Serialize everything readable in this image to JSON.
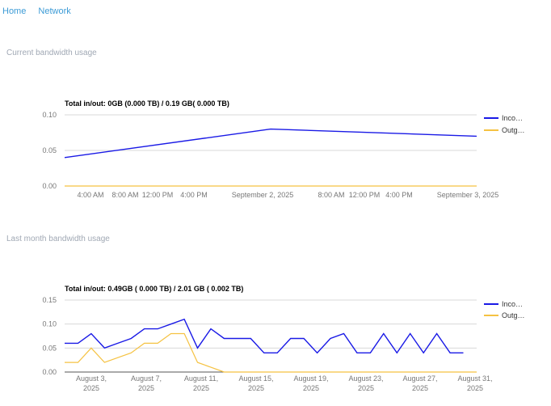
{
  "nav": {
    "home": "Home",
    "network": "Network"
  },
  "sections": {
    "current": "Current bandwidth usage",
    "last_month": "Last month bandwidth usage"
  },
  "colors": {
    "incoming": "#1a1ae6",
    "outgoing": "#f5c242",
    "grid": "#d8d8d8",
    "zero_line": "#555555"
  },
  "chart_data": [
    {
      "type": "line",
      "title": "Total in/out: 0GB (0.000 TB) / 0.19 GB( 0.000 TB)",
      "x": [
        "Sep 1, 2025 00:00",
        "Sep 2, 2025 00:00",
        "Sep 3, 2025 00:00"
      ],
      "x_ticks": [
        "4:00 AM",
        "8:00 AM",
        "12:00 PM",
        "4:00 PM",
        "September 2, 2025",
        "8:00 AM",
        "12:00 PM",
        "4:00 PM",
        "September 3, 2025"
      ],
      "y_ticks": [
        "0.10",
        "0.05",
        "0.00"
      ],
      "ylim": [
        0,
        0.1
      ],
      "legend": "right",
      "series": [
        {
          "name": "Inco…",
          "values": [
            0.04,
            0.08,
            0.07
          ]
        },
        {
          "name": "Outg…",
          "values": [
            0,
            0,
            0
          ]
        }
      ]
    },
    {
      "type": "line",
      "title": "Total in/out: 0.49GB ( 0.000 TB) / 2.01 GB ( 0.002 TB)",
      "x": [
        "2025-08-01",
        "2025-08-02",
        "2025-08-03",
        "2025-08-04",
        "2025-08-05",
        "2025-08-06",
        "2025-08-07",
        "2025-08-08",
        "2025-08-09",
        "2025-08-10",
        "2025-08-11",
        "2025-08-12",
        "2025-08-13",
        "2025-08-14",
        "2025-08-15",
        "2025-08-16",
        "2025-08-17",
        "2025-08-18",
        "2025-08-19",
        "2025-08-20",
        "2025-08-21",
        "2025-08-22",
        "2025-08-23",
        "2025-08-24",
        "2025-08-25",
        "2025-08-26",
        "2025-08-27",
        "2025-08-28",
        "2025-08-29",
        "2025-08-30",
        "2025-08-31",
        "2025-09-01"
      ],
      "x_ticks": [
        "August 3,\n2025",
        "August 7,\n2025",
        "August 11,\n2025",
        "August 15,\n2025",
        "August 19,\n2025",
        "August 23,\n2025",
        "August 27,\n2025",
        "August 31,\n2025"
      ],
      "y_ticks": [
        "0.15",
        "0.10",
        "0.05",
        "0.00"
      ],
      "ylim": [
        0,
        0.15
      ],
      "legend": "right",
      "series": [
        {
          "name": "Inco…",
          "values": [
            0.06,
            0.06,
            0.08,
            0.05,
            0.06,
            0.07,
            0.09,
            0.09,
            0.1,
            0.11,
            0.05,
            0.09,
            0.07,
            0.07,
            0.07,
            0.04,
            0.04,
            0.07,
            0.07,
            0.04,
            0.07,
            0.08,
            0.04,
            0.04,
            0.08,
            0.04,
            0.08,
            0.04,
            0.08,
            0.04,
            0.04,
            null
          ]
        },
        {
          "name": "Outg…",
          "values": [
            0.02,
            0.02,
            0.05,
            0.02,
            0.03,
            0.04,
            0.06,
            0.06,
            0.08,
            0.08,
            0.02,
            0.01,
            0,
            0,
            0,
            0,
            0,
            0,
            0,
            0,
            0,
            0,
            0,
            0,
            0,
            0,
            0,
            0,
            0,
            0,
            0,
            0
          ]
        }
      ]
    }
  ]
}
